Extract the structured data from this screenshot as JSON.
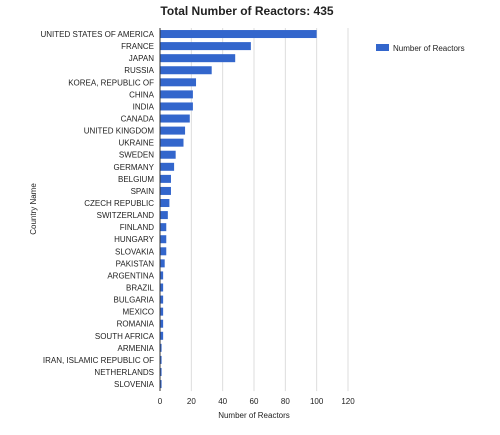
{
  "chart_data": {
    "type": "bar",
    "orientation": "horizontal",
    "title": "Total Number of Reactors: 435",
    "xlabel": "Number of Reactors",
    "ylabel": "Country Name",
    "xlim": [
      0,
      120
    ],
    "xticks": [
      "0",
      "20",
      "40",
      "60",
      "80",
      "100",
      "120"
    ],
    "grid": true,
    "legend_position": "top-right",
    "bar_color": "#3366cc",
    "categories": [
      "UNITED STATES OF AMERICA",
      "FRANCE",
      "JAPAN",
      "RUSSIA",
      "KOREA, REPUBLIC OF",
      "CHINA",
      "INDIA",
      "CANADA",
      "UNITED KINGDOM",
      "UKRAINE",
      "SWEDEN",
      "GERMANY",
      "BELGIUM",
      "SPAIN",
      "CZECH REPUBLIC",
      "SWITZERLAND",
      "FINLAND",
      "HUNGARY",
      "SLOVAKIA",
      "PAKISTAN",
      "ARGENTINA",
      "BRAZIL",
      "BULGARIA",
      "MEXICO",
      "ROMANIA",
      "SOUTH AFRICA",
      "ARMENIA",
      "IRAN, ISLAMIC REPUBLIC OF",
      "NETHERLANDS",
      "SLOVENIA"
    ],
    "series": [
      {
        "name": "Number of Reactors",
        "values": [
          100,
          58,
          48,
          33,
          23,
          21,
          21,
          19,
          16,
          15,
          10,
          9,
          7,
          7,
          6,
          5,
          4,
          4,
          4,
          3,
          2,
          2,
          2,
          2,
          2,
          2,
          1,
          1,
          1,
          1
        ]
      }
    ]
  }
}
